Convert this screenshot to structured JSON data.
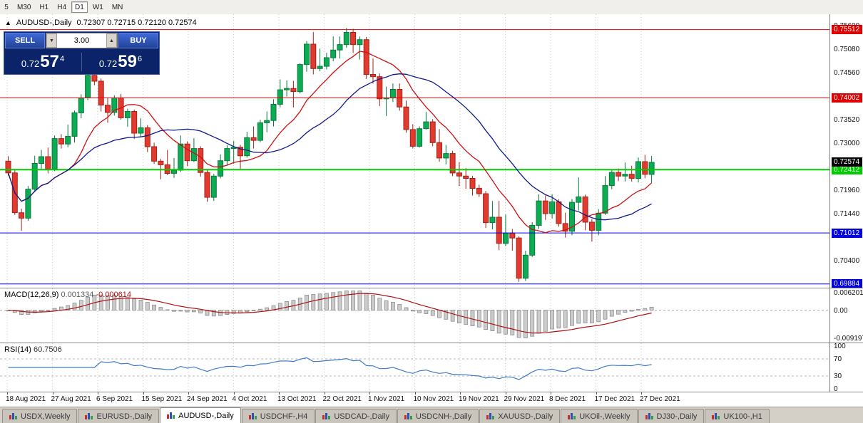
{
  "icons": {
    "collapse": "▲",
    "spin_up": "▲",
    "spin_down": "▼"
  },
  "toolbar": {
    "buttons": [
      "5",
      "M30",
      "H1",
      "H4",
      "D1",
      "W1",
      "MN"
    ],
    "active_index": 4
  },
  "chart": {
    "title": "AUDUSD-,Daily",
    "ohlc": "0.72307 0.72715 0.72120 0.72574"
  },
  "one_click": {
    "sell_label": "SELL",
    "buy_label": "BUY",
    "volume": "3.00",
    "bid": {
      "prefix": "0.72",
      "pips": "57",
      "frac": "4"
    },
    "ask": {
      "prefix": "0.72",
      "pips": "59",
      "frac": "6"
    }
  },
  "chart_data": {
    "type": "candlestick",
    "symbol": "AUDUSD-",
    "period": "Daily",
    "current_bar": {
      "open": "0.72307",
      "high": "0.72715",
      "low": "0.72120",
      "close": "0.72574"
    },
    "price_range": [
      0.698,
      0.75852
    ],
    "colors": {
      "up_fill": "#0cab54",
      "up_stroke": "#077a3a",
      "down_fill": "#e23a2e",
      "down_stroke": "#a32218",
      "ma_fast": "#cc1111",
      "ma_slow": "#101a8c",
      "macd_bar_fill": "#cccccc",
      "macd_bar_stroke": "#8c8c8c",
      "macd_signal": "#b01010",
      "rsi_line": "#3f7cc4",
      "grid": "#c8c8c8"
    },
    "moving_averages": [
      {
        "period": 10,
        "color": "#cc1111"
      },
      {
        "period": 21,
        "color": "#101a8c"
      }
    ],
    "levels": [
      {
        "value": 0.75512,
        "label": "0.75512",
        "color": "#dd0000",
        "width": 1
      },
      {
        "value": 0.74002,
        "label": "0.74002",
        "color": "#dd0000",
        "width": 1
      },
      {
        "value": 0.72412,
        "label": "0.72412",
        "color": "#00cc00",
        "width": 2
      },
      {
        "value": 0.71012,
        "label": "0.71012",
        "color": "#0000dd",
        "width": 1
      },
      {
        "value": 0.69884,
        "label": "0.69884",
        "color": "#0000dd",
        "width": 1
      }
    ],
    "last_price": {
      "value": 0.72574,
      "label": "0.72574",
      "bg": "#000000"
    },
    "y_axis": {
      "values": [
        0.756,
        0.7508,
        0.7456,
        0.7352,
        0.73,
        0.7196,
        0.7144,
        0.704
      ],
      "labels": [
        "0.75600",
        "0.75080",
        "0.74560",
        "0.73520",
        "0.73000",
        "0.71960",
        "0.71440",
        "0.70400"
      ]
    },
    "x_labels": [
      "18 Aug 2021",
      "27 Aug 2021",
      "6 Sep 2021",
      "15 Sep 2021",
      "24 Sep 2021",
      "4 Oct 2021",
      "13 Oct 2021",
      "22 Oct 2021",
      "1 Nov 2021",
      "10 Nov 2021",
      "19 Nov 2021",
      "29 Nov 2021",
      "8 Dec 2021",
      "17 Dec 2021",
      "27 Dec 2021"
    ],
    "candles": [
      [
        0.726,
        0.7271,
        0.7228,
        0.7234
      ],
      [
        0.7234,
        0.724,
        0.7141,
        0.7146
      ],
      [
        0.7146,
        0.7155,
        0.7106,
        0.7134
      ],
      [
        0.7134,
        0.7205,
        0.7128,
        0.7198
      ],
      [
        0.7198,
        0.7272,
        0.7194,
        0.7255
      ],
      [
        0.7255,
        0.7285,
        0.7243,
        0.727
      ],
      [
        0.727,
        0.729,
        0.7233,
        0.7241
      ],
      [
        0.7241,
        0.7317,
        0.7238,
        0.731
      ],
      [
        0.731,
        0.732,
        0.7288,
        0.7298
      ],
      [
        0.7298,
        0.7341,
        0.7291,
        0.7315
      ],
      [
        0.7315,
        0.7372,
        0.7301,
        0.7367
      ],
      [
        0.7367,
        0.7408,
        0.7355,
        0.74
      ],
      [
        0.74,
        0.7478,
        0.7395,
        0.745
      ],
      [
        0.745,
        0.7462,
        0.7428,
        0.7437
      ],
      [
        0.7437,
        0.7443,
        0.737,
        0.7384
      ],
      [
        0.7384,
        0.74,
        0.7345,
        0.7368
      ],
      [
        0.7368,
        0.7406,
        0.7361,
        0.74
      ],
      [
        0.74,
        0.7409,
        0.7352,
        0.7356
      ],
      [
        0.7356,
        0.7376,
        0.7336,
        0.737
      ],
      [
        0.737,
        0.7374,
        0.7309,
        0.7322
      ],
      [
        0.7322,
        0.7355,
        0.7314,
        0.7334
      ],
      [
        0.7334,
        0.734,
        0.728,
        0.7292
      ],
      [
        0.7292,
        0.7301,
        0.7254,
        0.726
      ],
      [
        0.726,
        0.7265,
        0.722,
        0.7252
      ],
      [
        0.7252,
        0.7285,
        0.7229,
        0.7233
      ],
      [
        0.7233,
        0.7267,
        0.7223,
        0.724
      ],
      [
        0.724,
        0.7317,
        0.7236,
        0.7298
      ],
      [
        0.7298,
        0.7304,
        0.7249,
        0.7261
      ],
      [
        0.7261,
        0.7311,
        0.7258,
        0.7288
      ],
      [
        0.7288,
        0.7293,
        0.7226,
        0.7235
      ],
      [
        0.7235,
        0.7241,
        0.717,
        0.718
      ],
      [
        0.718,
        0.7232,
        0.7172,
        0.7227
      ],
      [
        0.7227,
        0.7275,
        0.7222,
        0.7261
      ],
      [
        0.7261,
        0.7295,
        0.7252,
        0.7288
      ],
      [
        0.7288,
        0.7305,
        0.7254,
        0.7291
      ],
      [
        0.7291,
        0.7296,
        0.7243,
        0.7272
      ],
      [
        0.7272,
        0.7325,
        0.7268,
        0.7312
      ],
      [
        0.7312,
        0.7337,
        0.7288,
        0.7306
      ],
      [
        0.7306,
        0.7352,
        0.7302,
        0.7345
      ],
      [
        0.7345,
        0.737,
        0.7324,
        0.735
      ],
      [
        0.735,
        0.7397,
        0.7337,
        0.7386
      ],
      [
        0.7386,
        0.7441,
        0.7379,
        0.7418
      ],
      [
        0.7418,
        0.7439,
        0.7403,
        0.7421
      ],
      [
        0.7421,
        0.7438,
        0.7379,
        0.7414
      ],
      [
        0.7414,
        0.7477,
        0.741,
        0.7474
      ],
      [
        0.7474,
        0.7526,
        0.7458,
        0.7519
      ],
      [
        0.7519,
        0.7546,
        0.7452,
        0.7465
      ],
      [
        0.7465,
        0.7509,
        0.7459,
        0.747
      ],
      [
        0.747,
        0.75,
        0.7463,
        0.7489
      ],
      [
        0.7489,
        0.7536,
        0.7481,
        0.7506
      ],
      [
        0.7506,
        0.7536,
        0.7487,
        0.7518
      ],
      [
        0.7518,
        0.7555,
        0.7511,
        0.7545
      ],
      [
        0.7545,
        0.7553,
        0.75,
        0.7518
      ],
      [
        0.7518,
        0.7536,
        0.7485,
        0.7529
      ],
      [
        0.7529,
        0.7535,
        0.7442,
        0.7452
      ],
      [
        0.7452,
        0.7487,
        0.7432,
        0.7447
      ],
      [
        0.7447,
        0.7454,
        0.7382,
        0.7398
      ],
      [
        0.7398,
        0.7425,
        0.736,
        0.74
      ],
      [
        0.74,
        0.7432,
        0.7391,
        0.7419
      ],
      [
        0.7419,
        0.7432,
        0.7372,
        0.738
      ],
      [
        0.738,
        0.7394,
        0.7323,
        0.733
      ],
      [
        0.733,
        0.7342,
        0.7288,
        0.7293
      ],
      [
        0.7293,
        0.7337,
        0.729,
        0.7332
      ],
      [
        0.7332,
        0.7369,
        0.733,
        0.7347
      ],
      [
        0.7347,
        0.7353,
        0.7293,
        0.7301
      ],
      [
        0.7301,
        0.7331,
        0.7259,
        0.7267
      ],
      [
        0.7267,
        0.7296,
        0.7253,
        0.7277
      ],
      [
        0.7277,
        0.7283,
        0.7227,
        0.7234
      ],
      [
        0.7234,
        0.7258,
        0.7205,
        0.7227
      ],
      [
        0.7227,
        0.7245,
        0.7199,
        0.7222
      ],
      [
        0.7222,
        0.7227,
        0.7184,
        0.72
      ],
      [
        0.72,
        0.7208,
        0.7181,
        0.7188
      ],
      [
        0.7188,
        0.7194,
        0.7112,
        0.7124
      ],
      [
        0.7124,
        0.7172,
        0.7109,
        0.7136
      ],
      [
        0.7136,
        0.7172,
        0.7063,
        0.7078
      ],
      [
        0.7078,
        0.7142,
        0.7072,
        0.7101
      ],
      [
        0.7101,
        0.711,
        0.7062,
        0.709
      ],
      [
        0.709,
        0.7094,
        0.6993,
        0.7001
      ],
      [
        0.7001,
        0.7062,
        0.6995,
        0.7052
      ],
      [
        0.7052,
        0.7125,
        0.7048,
        0.7118
      ],
      [
        0.7118,
        0.7187,
        0.711,
        0.7172
      ],
      [
        0.7172,
        0.7184,
        0.713,
        0.7144
      ],
      [
        0.7144,
        0.7187,
        0.7133,
        0.717
      ],
      [
        0.717,
        0.7176,
        0.7115,
        0.7122
      ],
      [
        0.7122,
        0.7146,
        0.7091,
        0.7105
      ],
      [
        0.7105,
        0.7176,
        0.7096,
        0.7169
      ],
      [
        0.7169,
        0.7224,
        0.7151,
        0.7181
      ],
      [
        0.7181,
        0.7186,
        0.7107,
        0.7125
      ],
      [
        0.7125,
        0.7132,
        0.7082,
        0.7107
      ],
      [
        0.7107,
        0.7154,
        0.7096,
        0.7145
      ],
      [
        0.7145,
        0.7227,
        0.7141,
        0.7206
      ],
      [
        0.7206,
        0.7242,
        0.7198,
        0.7235
      ],
      [
        0.7235,
        0.7244,
        0.7216,
        0.7227
      ],
      [
        0.7227,
        0.7257,
        0.7215,
        0.7231
      ],
      [
        0.7231,
        0.725,
        0.7215,
        0.7222
      ],
      [
        0.7222,
        0.7268,
        0.7213,
        0.7259
      ],
      [
        0.7259,
        0.7274,
        0.7222,
        0.7231
      ],
      [
        0.72307,
        0.72715,
        0.7212,
        0.72574
      ]
    ],
    "macd": {
      "label": "MACD(12,26,9)",
      "params": [
        12,
        26,
        9
      ],
      "value_main": "0.001334",
      "value_signal": "-0.000614",
      "scale_max": 0.0068,
      "scale_min": -0.0101,
      "axis_top": "0.006201",
      "axis_zero": "0.00",
      "axis_bottom": "-0.009197"
    },
    "rsi": {
      "label": "RSI(14)",
      "period": 14,
      "value": "60.7506",
      "dashed_levels": [
        70,
        30
      ],
      "axis_labels": [
        "100",
        "70",
        "30",
        "0"
      ]
    }
  },
  "tabs": {
    "active_index": 2,
    "items": [
      "USDX,Weekly",
      "EURUSD-,Daily",
      "AUDUSD-,Daily",
      "USDCHF-,H4",
      "USDCAD-,Daily",
      "USDCNH-,Daily",
      "XAUUSD-,Daily",
      "UKOil-,Weekly",
      "DJ30-,Daily",
      "UK100-,H1"
    ]
  }
}
